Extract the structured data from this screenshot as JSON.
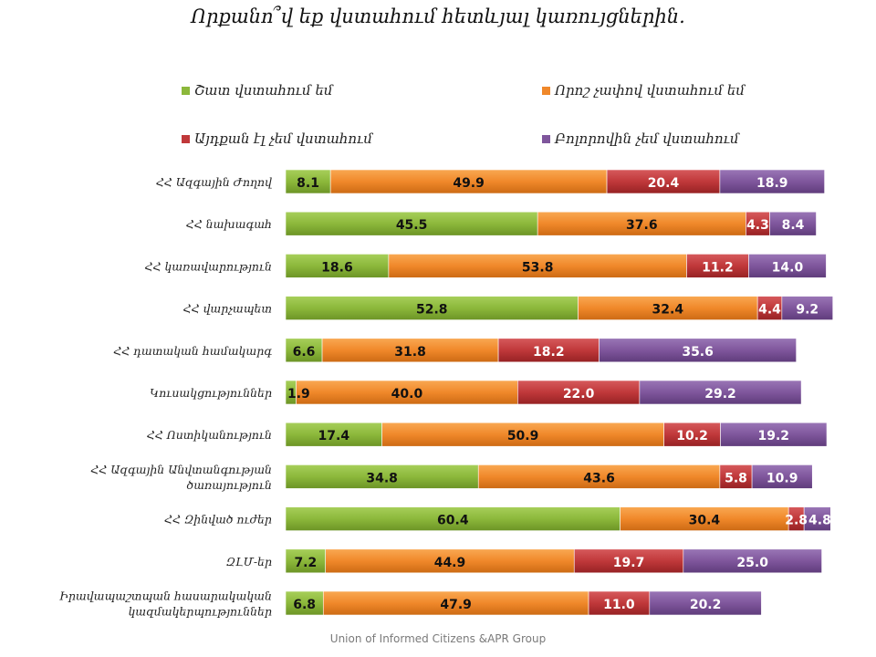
{
  "chart_data": {
    "type": "bar",
    "orientation": "horizontal",
    "stacked": "percent",
    "title": "Որքանո՞վ եք վստահում հետևյալ կառույցներին.",
    "source": "Union of Informed Citizens &APR Group",
    "legend_position": "top",
    "grid": false,
    "xlim": [
      0,
      100
    ],
    "categories": [
      "ՀՀ Ազգային Ժողով",
      "ՀՀ նախագահ",
      "ՀՀ կառավարություն",
      "ՀՀ վարչապետ",
      "ՀՀ դատական համակարգ",
      "Կուսակցություններ",
      "ՀՀ Ոստիկանություն",
      "ՀՀ Ազգային Անվտանգության ծառայություն",
      "ՀՀ Զինված ուժեր",
      "ԶԼՄ-եր",
      "Իրավապաշտպան հասարակական կազմակերպություններ"
    ],
    "series": [
      {
        "name": "Շատ վստահում եմ",
        "color": "#8cb83b",
        "values": [
          8.1,
          45.5,
          18.6,
          52.8,
          6.6,
          1.9,
          17.4,
          34.8,
          60.4,
          7.2,
          6.8
        ]
      },
      {
        "name": "Որոշ չափով վստահում եմ",
        "color": "#f0882a",
        "values": [
          49.9,
          37.6,
          53.8,
          32.4,
          31.8,
          40.0,
          50.9,
          43.6,
          30.4,
          44.9,
          47.9
        ]
      },
      {
        "name": "Այդքան էլ չեմ վստահում",
        "color": "#c0383a",
        "values": [
          20.4,
          4.3,
          11.2,
          4.4,
          18.2,
          22.0,
          10.2,
          5.8,
          2.8,
          19.7,
          11.0
        ]
      },
      {
        "name": "Բոլորովին չեմ վստահում",
        "color": "#7f569c",
        "values": [
          18.9,
          8.4,
          14.0,
          9.2,
          35.6,
          29.2,
          19.2,
          10.9,
          4.8,
          25.0,
          20.2
        ]
      }
    ]
  }
}
